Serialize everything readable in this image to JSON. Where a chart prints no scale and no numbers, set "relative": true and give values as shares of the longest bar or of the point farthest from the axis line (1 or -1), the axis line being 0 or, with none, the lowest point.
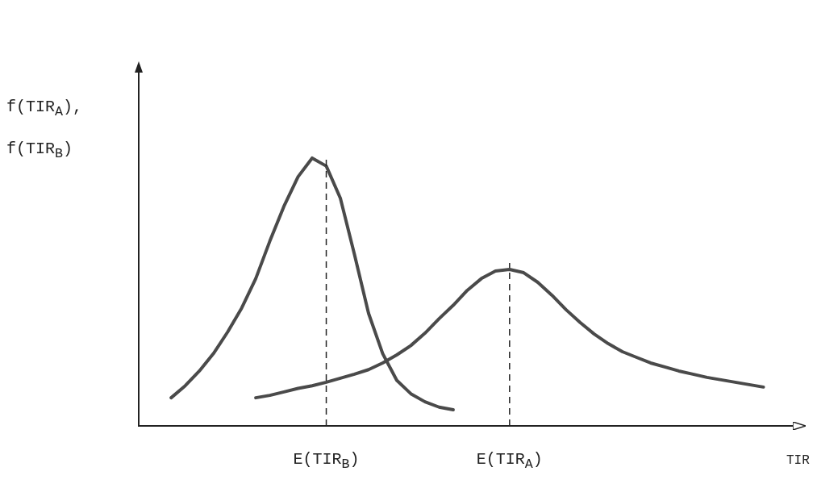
{
  "chart_data": {
    "type": "line",
    "relative": true,
    "xlabel": "TIR",
    "ylabel": "f(TIR$_{A}$),\nf(TIR$_{B}$)",
    "categories": [
      null,
      null,
      null,
      null,
      null,
      null,
      null,
      null,
      null,
      null,
      null,
      "E(TIR$_{B}$)",
      null,
      null,
      null,
      null,
      null,
      null,
      null,
      null,
      null,
      null,
      null,
      null,
      "E(TIR$_{A}$)",
      null,
      null,
      null,
      null,
      null,
      null,
      null,
      null,
      null,
      null,
      null,
      null,
      null,
      null,
      null,
      null,
      null,
      null
    ],
    "series": [
      {
        "color": "#4a4a4a",
        "values": [
          0.105,
          0.15,
          0.205,
          0.27,
          0.35,
          0.44,
          0.55,
          0.69,
          0.82,
          0.93,
          1,
          0.97,
          0.85,
          0.64,
          0.42,
          0.27,
          0.17,
          0.12,
          0.09,
          0.07,
          0.06,
          null,
          null,
          null,
          null,
          null,
          null,
          null,
          null,
          null,
          null,
          null,
          null,
          null,
          null,
          null,
          null,
          null,
          null,
          null,
          null,
          null,
          null
        ]
      },
      {
        "color": "#4a4a4a",
        "values": [
          null,
          null,
          null,
          null,
          null,
          null,
          0.105,
          0.114,
          0.127,
          0.14,
          0.15,
          0.163,
          0.178,
          0.193,
          0.21,
          0.235,
          0.265,
          0.3,
          0.346,
          0.4,
          0.45,
          0.506,
          0.55,
          0.578,
          0.584,
          0.572,
          0.536,
          0.488,
          0.434,
          0.386,
          0.343,
          0.307,
          0.277,
          0.256,
          0.235,
          0.22,
          0.205,
          0.193,
          0.181,
          0.172,
          0.163,
          0.154,
          0.145
        ]
      }
    ],
    "ref_lines": [
      {
        "axis": "x",
        "value": "E(TIR$_{B}$)",
        "line_style": "dashed"
      },
      {
        "axis": "x",
        "value": "E(TIR$_{A}$)",
        "line_style": "dashed"
      }
    ],
    "legend": false,
    "marker": "none",
    "line_style": "solid"
  }
}
